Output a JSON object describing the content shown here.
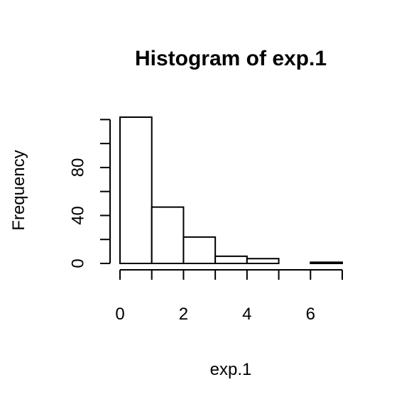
{
  "chart_data": {
    "type": "bar",
    "title": "Histogram of exp.1",
    "xlabel": "exp.1",
    "ylabel": "Frequency",
    "bins": [
      {
        "x0": 0,
        "x1": 1,
        "count": 122
      },
      {
        "x0": 1,
        "x1": 2,
        "count": 47
      },
      {
        "x0": 2,
        "x1": 3,
        "count": 22
      },
      {
        "x0": 3,
        "x1": 4,
        "count": 6
      },
      {
        "x0": 4,
        "x1": 5,
        "count": 4
      },
      {
        "x0": 5,
        "x1": 6,
        "count": 0
      },
      {
        "x0": 6,
        "x1": 7,
        "count": 1
      }
    ],
    "xlim": [
      0,
      7
    ],
    "ylim": [
      0,
      122
    ],
    "x_ticks": [
      0,
      1,
      2,
      3,
      4,
      5,
      6,
      7
    ],
    "x_tick_labels": [
      "0",
      "",
      "2",
      "",
      "4",
      "",
      "6",
      ""
    ],
    "y_ticks": [
      0,
      20,
      40,
      60,
      80,
      100,
      120
    ],
    "y_tick_labels": [
      "0",
      "",
      "40",
      "",
      "80",
      "",
      ""
    ],
    "grid": false,
    "legend": "none"
  }
}
